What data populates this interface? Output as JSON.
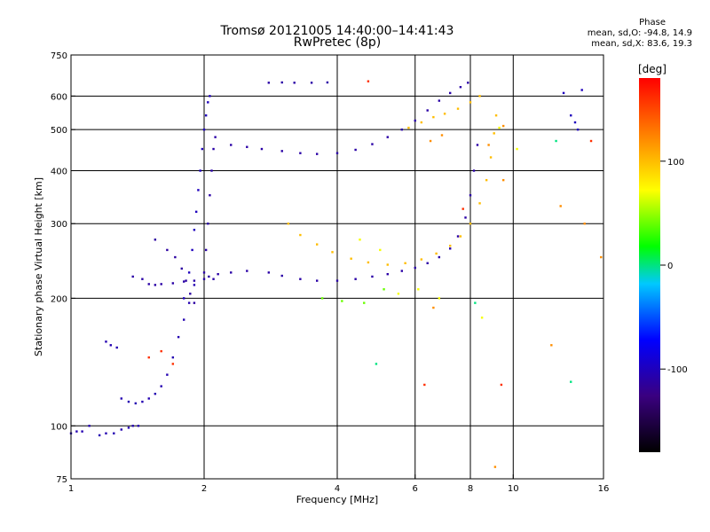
{
  "chart_data": {
    "type": "scatter",
    "title": "Tromsø 20121005 14:40:00–14:41:43",
    "subtitle": "RwPretec (8p)",
    "xlabel": "Frequency [MHz]",
    "ylabel": "Stationary phase Virtual Height [km]",
    "x_scale": "log",
    "y_scale": "log",
    "xlim": [
      1,
      16
    ],
    "ylim": [
      75,
      750
    ],
    "x_ticks": [
      1,
      2,
      4,
      6,
      8,
      10,
      16
    ],
    "y_ticks": [
      75,
      100,
      200,
      300,
      400,
      500,
      600,
      750
    ],
    "grid_x": [
      2,
      4,
      6,
      8,
      10
    ],
    "grid_y": [
      100,
      200,
      300,
      400,
      500,
      600
    ],
    "colorbar": {
      "label": "[deg]",
      "range": [
        -180,
        180
      ],
      "ticks": [
        100,
        0,
        -100
      ]
    },
    "stats": {
      "heading": "Phase",
      "line_o": "mean, sd,O: -94.8, 14.9",
      "line_x": "mean, sd,X: 83.6, 19.3"
    },
    "traces": [
      {
        "phase": -105,
        "points": [
          [
            1.0,
            96
          ],
          [
            1.03,
            97
          ],
          [
            1.06,
            97
          ],
          [
            1.1,
            100
          ]
        ]
      },
      {
        "phase": -105,
        "points": [
          [
            1.16,
            95
          ],
          [
            1.2,
            96
          ],
          [
            1.25,
            96
          ],
          [
            1.3,
            98
          ],
          [
            1.35,
            99
          ],
          [
            1.38,
            100
          ],
          [
            1.42,
            100
          ]
        ]
      },
      {
        "phase": -105,
        "points": [
          [
            1.2,
            158
          ],
          [
            1.23,
            155
          ],
          [
            1.27,
            153
          ]
        ]
      },
      {
        "phase": -105,
        "points": [
          [
            1.3,
            116
          ],
          [
            1.35,
            114
          ],
          [
            1.4,
            113
          ],
          [
            1.45,
            114
          ],
          [
            1.5,
            116
          ],
          [
            1.55,
            119
          ],
          [
            1.6,
            124
          ],
          [
            1.65,
            132
          ],
          [
            1.7,
            145
          ],
          [
            1.75,
            162
          ],
          [
            1.8,
            178
          ],
          [
            1.85,
            195
          ],
          [
            1.9,
            215
          ]
        ]
      },
      {
        "phase": -110,
        "points": [
          [
            1.38,
            225
          ],
          [
            1.45,
            222
          ],
          [
            1.5,
            216
          ],
          [
            1.55,
            215
          ],
          [
            1.6,
            216
          ],
          [
            1.7,
            217
          ],
          [
            1.8,
            219
          ],
          [
            1.9,
            220
          ],
          [
            2.0,
            222
          ],
          [
            2.1,
            222
          ]
        ]
      },
      {
        "phase": -112,
        "points": [
          [
            1.55,
            275
          ],
          [
            1.65,
            260
          ],
          [
            1.72,
            250
          ],
          [
            1.78,
            235
          ],
          [
            1.82,
            220
          ],
          [
            1.86,
            205
          ],
          [
            1.9,
            195
          ]
        ]
      },
      {
        "phase": -100,
        "points": [
          [
            1.8,
            200
          ],
          [
            1.85,
            230
          ],
          [
            1.88,
            260
          ],
          [
            1.9,
            290
          ],
          [
            1.92,
            320
          ],
          [
            1.94,
            360
          ],
          [
            1.96,
            400
          ],
          [
            1.98,
            450
          ],
          [
            2.0,
            500
          ],
          [
            2.02,
            540
          ],
          [
            2.04,
            580
          ],
          [
            2.06,
            600
          ]
        ]
      },
      {
        "phase": -110,
        "points": [
          [
            2.0,
            230
          ],
          [
            2.02,
            260
          ],
          [
            2.04,
            300
          ],
          [
            2.06,
            350
          ],
          [
            2.08,
            400
          ],
          [
            2.1,
            450
          ],
          [
            2.12,
            480
          ]
        ]
      },
      {
        "phase": -110,
        "points": [
          [
            2.05,
            225
          ],
          [
            2.15,
            228
          ],
          [
            2.3,
            230
          ],
          [
            2.5,
            232
          ],
          [
            2.8,
            230
          ],
          [
            3.0,
            226
          ],
          [
            3.3,
            222
          ],
          [
            3.6,
            220
          ],
          [
            4.0,
            220
          ],
          [
            4.4,
            222
          ],
          [
            4.8,
            225
          ],
          [
            5.2,
            228
          ],
          [
            5.6,
            232
          ],
          [
            6.0,
            236
          ],
          [
            6.4,
            242
          ],
          [
            6.8,
            250
          ],
          [
            7.2,
            262
          ],
          [
            7.5,
            280
          ],
          [
            7.8,
            310
          ],
          [
            8.0,
            350
          ],
          [
            8.15,
            400
          ],
          [
            8.3,
            460
          ]
        ]
      },
      {
        "phase": -110,
        "points": [
          [
            2.3,
            460
          ],
          [
            2.5,
            455
          ],
          [
            2.7,
            450
          ],
          [
            3.0,
            445
          ],
          [
            3.3,
            440
          ],
          [
            3.6,
            438
          ],
          [
            4.0,
            440
          ],
          [
            4.4,
            448
          ],
          [
            4.8,
            462
          ],
          [
            5.2,
            480
          ],
          [
            5.6,
            500
          ],
          [
            6.0,
            525
          ],
          [
            6.4,
            555
          ],
          [
            6.8,
            585
          ],
          [
            7.2,
            610
          ],
          [
            7.6,
            630
          ],
          [
            7.9,
            645
          ]
        ]
      },
      {
        "phase": -110,
        "points": [
          [
            2.8,
            645
          ],
          [
            3.0,
            646
          ],
          [
            3.2,
            645
          ],
          [
            3.5,
            645
          ],
          [
            3.8,
            646
          ]
        ]
      },
      {
        "phase": 100,
        "points": [
          [
            3.1,
            300
          ],
          [
            3.3,
            282
          ],
          [
            3.6,
            268
          ],
          [
            3.9,
            257
          ],
          [
            4.3,
            248
          ],
          [
            4.7,
            243
          ],
          [
            5.2,
            240
          ],
          [
            5.7,
            242
          ],
          [
            6.2,
            247
          ],
          [
            6.7,
            255
          ],
          [
            7.2,
            266
          ],
          [
            7.6,
            280
          ],
          [
            8.0,
            300
          ],
          [
            8.4,
            335
          ],
          [
            8.7,
            380
          ],
          [
            8.9,
            430
          ],
          [
            9.05,
            490
          ],
          [
            9.15,
            540
          ]
        ]
      },
      {
        "phase": 100,
        "points": [
          [
            5.8,
            505
          ],
          [
            6.2,
            520
          ],
          [
            6.6,
            535
          ],
          [
            7.0,
            545
          ],
          [
            7.5,
            560
          ],
          [
            8.0,
            580
          ],
          [
            8.4,
            600
          ]
        ]
      },
      {
        "phase": -100,
        "points": [
          [
            13.0,
            610
          ],
          [
            14.3,
            620
          ],
          [
            13.5,
            540
          ],
          [
            13.8,
            520
          ],
          [
            14.0,
            500
          ]
        ]
      },
      {
        "phase": 40,
        "points": [
          [
            3.7,
            200
          ],
          [
            4.1,
            197
          ],
          [
            4.6,
            195
          ],
          [
            5.1,
            210
          ]
        ]
      },
      {
        "phase": 0,
        "points": [
          [
            4.9,
            140
          ],
          [
            8.2,
            195
          ],
          [
            12.5,
            470
          ],
          [
            13.5,
            127
          ]
        ]
      },
      {
        "phase": 160,
        "points": [
          [
            1.5,
            145
          ],
          [
            1.6,
            150
          ],
          [
            1.7,
            140
          ],
          [
            4.7,
            650
          ],
          [
            6.3,
            125
          ],
          [
            7.7,
            325
          ],
          [
            9.4,
            125
          ],
          [
            15.0,
            470
          ]
        ]
      },
      {
        "phase": 120,
        "points": [
          [
            6.5,
            470
          ],
          [
            6.6,
            190
          ],
          [
            6.9,
            485
          ],
          [
            8.8,
            460
          ],
          [
            9.1,
            80
          ],
          [
            9.5,
            380
          ],
          [
            9.5,
            510
          ],
          [
            12.2,
            155
          ],
          [
            12.8,
            330
          ],
          [
            14.5,
            300
          ],
          [
            15.8,
            250
          ]
        ]
      },
      {
        "phase": 70,
        "points": [
          [
            4.5,
            275
          ],
          [
            5.0,
            260
          ],
          [
            5.5,
            205
          ],
          [
            6.1,
            210
          ],
          [
            6.8,
            200
          ],
          [
            8.5,
            180
          ],
          [
            9.3,
            505
          ],
          [
            10.2,
            450
          ]
        ]
      }
    ]
  }
}
